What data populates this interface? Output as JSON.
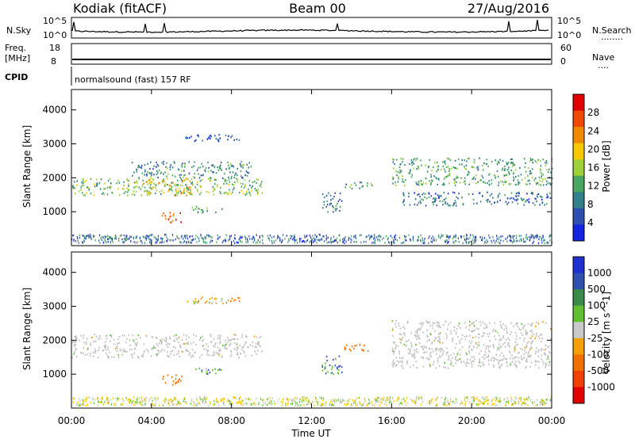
{
  "header": {
    "station": "Kodiak (fitACF)",
    "beam": "Beam 00",
    "date": "27/Aug/2016"
  },
  "top_panels": {
    "nsky": {
      "label": "N.Sky",
      "ticks": [
        "10^5",
        "10^0"
      ],
      "right_label": "N.Search",
      "right_ticks": [
        "10^5",
        "10^0"
      ],
      "dots": "........"
    },
    "freq": {
      "label_line1": "Freq.",
      "label_line2": "[MHz]",
      "ticks": [
        "18",
        "8"
      ],
      "right_label": "Nave",
      "right_ticks": [
        "60",
        "0"
      ],
      "dots": "...."
    },
    "cpid": {
      "label": "CPID",
      "text": "normalsound (fast) 157 RF"
    }
  },
  "colors": {
    "power_scale": [
      "#1524e0",
      "#2f4eb0",
      "#32808a",
      "#4aa560",
      "#9ed03a",
      "#f5c800",
      "#f08a00",
      "#f04a00",
      "#e00000"
    ],
    "velocity_scale": [
      "#2030d0",
      "#3050b0",
      "#3a8a4a",
      "#60c030",
      "#c8c8c8",
      "#f5a000",
      "#f07000",
      "#f04000",
      "#e00000"
    ],
    "ground_scatter": "#c0c0c0"
  },
  "chart_data": [
    {
      "type": "heatmap",
      "title": "",
      "xlabel": "Time UT",
      "ylabel": "Slant Range [km]",
      "xlim": [
        "00:00",
        "24:00"
      ],
      "ylim": [
        0,
        4600
      ],
      "x_ticks": [
        "00:00",
        "04:00",
        "08:00",
        "12:00",
        "16:00",
        "20:00",
        "00:00"
      ],
      "y_ticks": [
        "1000",
        "2000",
        "3000",
        "4000"
      ],
      "colorbar": {
        "label": "Power [dB]",
        "range": [
          0,
          32
        ],
        "ticks": [
          "4",
          "8",
          "12",
          "16",
          "20",
          "24",
          "28"
        ]
      },
      "echo_regions": [
        {
          "t_start": 0.0,
          "t_end": 9.5,
          "range_km": [
            1500,
            2000
          ],
          "power_db": 14
        },
        {
          "t_start": 3.0,
          "t_end": 9.0,
          "range_km": [
            2000,
            2500
          ],
          "power_db": 10
        },
        {
          "t_start": 3.5,
          "t_end": 6.0,
          "range_km": [
            1500,
            2000
          ],
          "power_db": 20
        },
        {
          "t_start": 4.5,
          "t_end": 5.5,
          "range_km": [
            700,
            1000
          ],
          "power_db": 26
        },
        {
          "t_start": 6.0,
          "t_end": 7.5,
          "range_km": [
            1000,
            1200
          ],
          "power_db": 12
        },
        {
          "t_start": 5.5,
          "t_end": 8.5,
          "range_km": [
            3100,
            3300
          ],
          "power_db": 6
        },
        {
          "t_start": 12.5,
          "t_end": 13.5,
          "range_km": [
            1000,
            1600
          ],
          "power_db": 8
        },
        {
          "t_start": 13.5,
          "t_end": 15.0,
          "range_km": [
            1700,
            1900
          ],
          "power_db": 12
        },
        {
          "t_start": 16.0,
          "t_end": 24.0,
          "range_km": [
            1800,
            2600
          ],
          "power_db": 12
        },
        {
          "t_start": 16.5,
          "t_end": 24.0,
          "range_km": [
            1200,
            1600
          ],
          "power_db": 8
        }
      ]
    },
    {
      "type": "heatmap",
      "title": "",
      "xlabel": "Time UT",
      "ylabel": "Slant Range [km]",
      "xlim": [
        "00:00",
        "24:00"
      ],
      "ylim": [
        0,
        4600
      ],
      "x_ticks": [
        "00:00",
        "04:00",
        "08:00",
        "12:00",
        "16:00",
        "20:00",
        "00:00"
      ],
      "y_ticks": [
        "1000",
        "2000",
        "3000",
        "4000"
      ],
      "colorbar": {
        "label": "Velocity [m s^-1]",
        "ticks": [
          "1000",
          "500",
          "100",
          "25",
          "-25",
          "-100",
          "-500",
          "-1000"
        ]
      },
      "echo_regions": [
        {
          "t_start": 0.0,
          "t_end": 9.5,
          "range_km": [
            1500,
            2200
          ],
          "velocity_ms": 0,
          "ground_scatter": true
        },
        {
          "t_start": 4.5,
          "t_end": 5.5,
          "range_km": [
            700,
            1000
          ],
          "velocity_ms": -300
        },
        {
          "t_start": 6.0,
          "t_end": 7.5,
          "range_km": [
            1000,
            1200
          ],
          "velocity_ms": 80
        },
        {
          "t_start": 5.5,
          "t_end": 8.5,
          "range_km": [
            3100,
            3300
          ],
          "velocity_ms": -50
        },
        {
          "t_start": 12.5,
          "t_end": 13.5,
          "range_km": [
            1000,
            1600
          ],
          "velocity_ms": 100
        },
        {
          "t_start": 13.5,
          "t_end": 15.0,
          "range_km": [
            1700,
            1900
          ],
          "velocity_ms": -200
        },
        {
          "t_start": 16.0,
          "t_end": 24.0,
          "range_km": [
            1200,
            2600
          ],
          "velocity_ms": 0,
          "ground_scatter": true
        }
      ]
    }
  ]
}
